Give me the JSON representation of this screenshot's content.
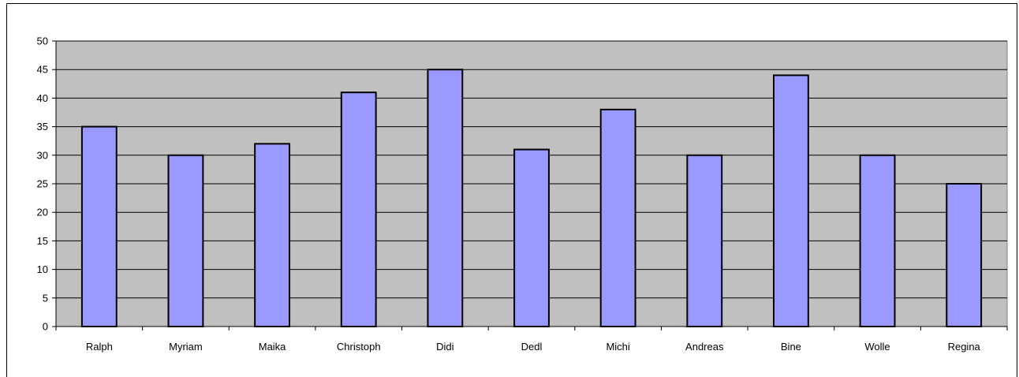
{
  "chart_data": {
    "type": "bar",
    "title": "",
    "xlabel": "",
    "ylabel": "",
    "categories": [
      "Ralph",
      "Myriam",
      "Maika",
      "Christoph",
      "Didi",
      "Dedl",
      "Michi",
      "Andreas",
      "Bine",
      "Wolle",
      "Regina"
    ],
    "values": [
      35,
      30,
      32,
      41,
      45,
      31,
      38,
      30,
      44,
      30,
      25
    ],
    "ylim": [
      0,
      50
    ],
    "yticks": [
      0,
      5,
      10,
      15,
      20,
      25,
      30,
      35,
      40,
      45,
      50
    ],
    "grid": true,
    "legend": "none",
    "colors": {
      "bar_fill": "#9999ff",
      "bar_stroke": "#000000",
      "plot_background": "#c0c0c0",
      "gridline": "#000000"
    }
  }
}
